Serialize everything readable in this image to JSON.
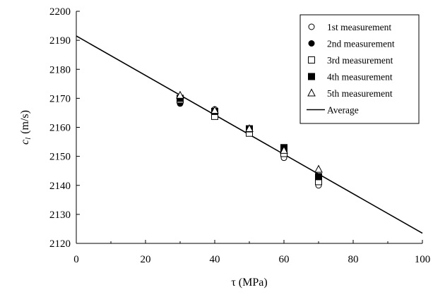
{
  "chart_data": {
    "type": "scatter",
    "xlabel": "τ (MPa)",
    "ylabel_symbol": "c",
    "ylabel_subscript": "l",
    "ylabel_unit": "(m/s)",
    "xlim": [
      0,
      100
    ],
    "ylim": [
      2120,
      2200
    ],
    "x_ticks": [
      0,
      20,
      40,
      60,
      80,
      100
    ],
    "y_ticks": [
      2120,
      2130,
      2140,
      2150,
      2160,
      2170,
      2180,
      2190,
      2200
    ],
    "grid": false,
    "legend_position": "top-right",
    "series": [
      {
        "name": "1st measurement",
        "marker": "circle-open",
        "x": [
          30,
          40,
          50,
          60,
          70
        ],
        "y": [
          2169,
          2166.2,
          2159,
          2149.5,
          2140
        ]
      },
      {
        "name": "2nd measurement",
        "marker": "circle-filled",
        "x": [
          30,
          40,
          50,
          60,
          70
        ],
        "y": [
          2168.2,
          2165.2,
          2158.8,
          2151.5,
          2141.8
        ]
      },
      {
        "name": "3rd measurement",
        "marker": "square-open",
        "x": [
          30,
          40,
          50,
          60,
          70
        ],
        "y": [
          2169.5,
          2163.8,
          2158,
          2151,
          2141.3
        ]
      },
      {
        "name": "4th measurement",
        "marker": "square-filled",
        "x": [
          30,
          40,
          50,
          60,
          70
        ],
        "y": [
          2170,
          2165.5,
          2159.5,
          2153,
          2143
        ]
      },
      {
        "name": "5th measurement",
        "marker": "triangle-open",
        "x": [
          30,
          40,
          50,
          60,
          70
        ],
        "y": [
          2171,
          2165.8,
          2159.5,
          2152,
          2145.5
        ]
      },
      {
        "name": "Average",
        "marker": "line",
        "x": [
          0,
          100
        ],
        "y": [
          2191.5,
          2123.5
        ]
      }
    ]
  }
}
